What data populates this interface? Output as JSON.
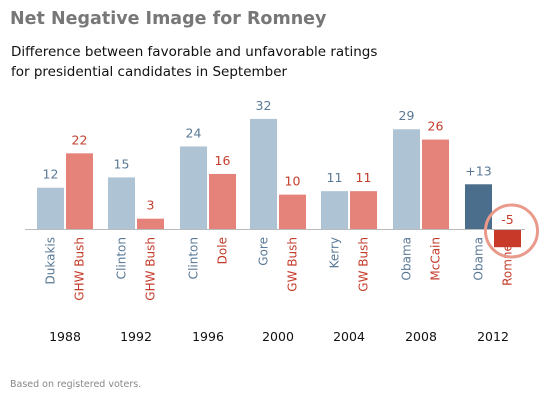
{
  "title": "Net Negative Image for Romney",
  "subtitle_lines": [
    "Difference between favorable and unfavorable ratings",
    "for presidential candidates in September"
  ],
  "footnote": "Based on registered voters.",
  "colors": {
    "democrat": "#aec4d4",
    "republican": "#e5837b",
    "democrat_2012": "#4b6e8d",
    "republican_2012": "#c9392a",
    "democrat_text": "#5a7996",
    "republican_text": "#c43d2c",
    "highlight_ring": "#e99a8b"
  },
  "chart_data": {
    "type": "bar",
    "title": "Net Negative Image for Romney",
    "subtitle": "Difference between favorable and unfavorable ratings for presidential candidates in September",
    "categories": [
      "1988",
      "1992",
      "1996",
      "2000",
      "2004",
      "2008",
      "2012"
    ],
    "series": [
      {
        "party": "Democrat",
        "candidates": [
          "Dukakis",
          "Clinton",
          "Clinton",
          "Gore",
          "Kerry",
          "Obama",
          "Obama"
        ],
        "values": [
          12,
          15,
          24,
          32,
          11,
          29,
          13
        ],
        "labels": [
          "12",
          "15",
          "24",
          "32",
          "11",
          "29",
          "+13"
        ]
      },
      {
        "party": "Republican",
        "candidates": [
          "GHW Bush",
          "GHW Bush",
          "Dole",
          "GW Bush",
          "GW Bush",
          "McCain",
          "Romney"
        ],
        "values": [
          22,
          3,
          16,
          10,
          11,
          26,
          -5
        ],
        "labels": [
          "22",
          "3",
          "16",
          "10",
          "11",
          "26",
          "-5"
        ]
      }
    ],
    "ylim": [
      -5,
      32
    ],
    "grid": false,
    "legend": "none",
    "highlight": "Romney 2012"
  }
}
